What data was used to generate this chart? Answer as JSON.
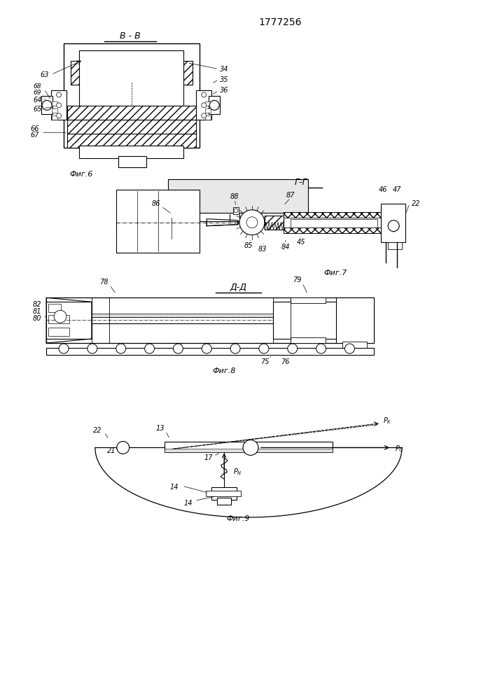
{
  "title": "1777256",
  "bg_color": "#ffffff",
  "fig6_label": "В - В",
  "fig6_caption": "Фиг.6",
  "fig7_label": "Г-Г",
  "fig7_caption": "Фиг.7",
  "fig8_label": "Д-Д",
  "fig8_caption": "Фиг.8",
  "fig9_caption": "Фиг.9"
}
